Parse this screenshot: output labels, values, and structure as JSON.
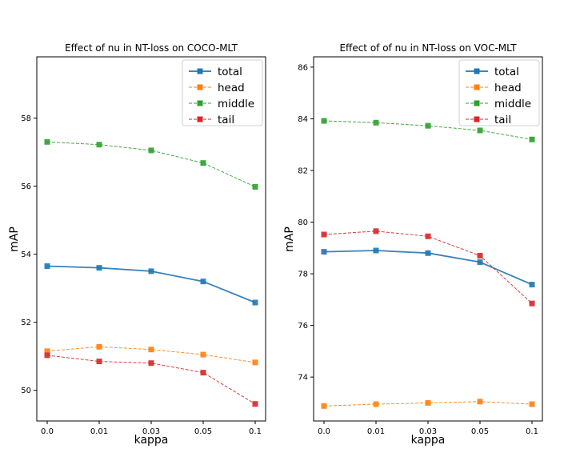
{
  "chart_data": [
    {
      "type": "line",
      "title": "Effect of nu in NT-loss on COCO-MLT",
      "xlabel": "kappa",
      "ylabel": "mAP",
      "categories": [
        "0.0",
        "0.01",
        "0.03",
        "0.05",
        "0.1"
      ],
      "yticks": [
        50,
        52,
        54,
        56,
        58
      ],
      "ylim": [
        49.1,
        59.8
      ],
      "legend_position": "top-right",
      "series": [
        {
          "name": "total",
          "values": [
            53.65,
            53.6,
            53.5,
            53.2,
            52.58
          ],
          "color": "#1f77b4",
          "style": "solid"
        },
        {
          "name": "head",
          "values": [
            51.15,
            51.28,
            51.2,
            51.05,
            50.82
          ],
          "color": "#ff7f0e",
          "style": "dashed"
        },
        {
          "name": "middle",
          "values": [
            57.3,
            57.22,
            57.05,
            56.68,
            55.98
          ],
          "color": "#2ca02c",
          "style": "dashed"
        },
        {
          "name": "tail",
          "values": [
            51.03,
            50.85,
            50.8,
            50.52,
            49.6
          ],
          "color": "#d62728",
          "style": "dashed"
        }
      ]
    },
    {
      "type": "line",
      "title": "Effect of of nu in NT-loss on VOC-MLT",
      "xlabel": "kappa",
      "ylabel": "mAP",
      "categories": [
        "0.0",
        "0.01",
        "0.03",
        "0.05",
        "0.1"
      ],
      "yticks": [
        74,
        76,
        78,
        80,
        82,
        84,
        86
      ],
      "ylim": [
        72.3,
        86.4
      ],
      "legend_position": "top-right",
      "series": [
        {
          "name": "total",
          "values": [
            78.85,
            78.9,
            78.8,
            78.45,
            77.58
          ],
          "color": "#1f77b4",
          "style": "solid"
        },
        {
          "name": "head",
          "values": [
            72.88,
            72.95,
            73.0,
            73.05,
            72.95
          ],
          "color": "#ff7f0e",
          "style": "dashed"
        },
        {
          "name": "middle",
          "values": [
            83.92,
            83.85,
            83.73,
            83.55,
            83.2
          ],
          "color": "#2ca02c",
          "style": "dashed"
        },
        {
          "name": "tail",
          "values": [
            79.52,
            79.65,
            79.45,
            78.7,
            76.85
          ],
          "color": "#d62728",
          "style": "dashed"
        }
      ]
    }
  ]
}
